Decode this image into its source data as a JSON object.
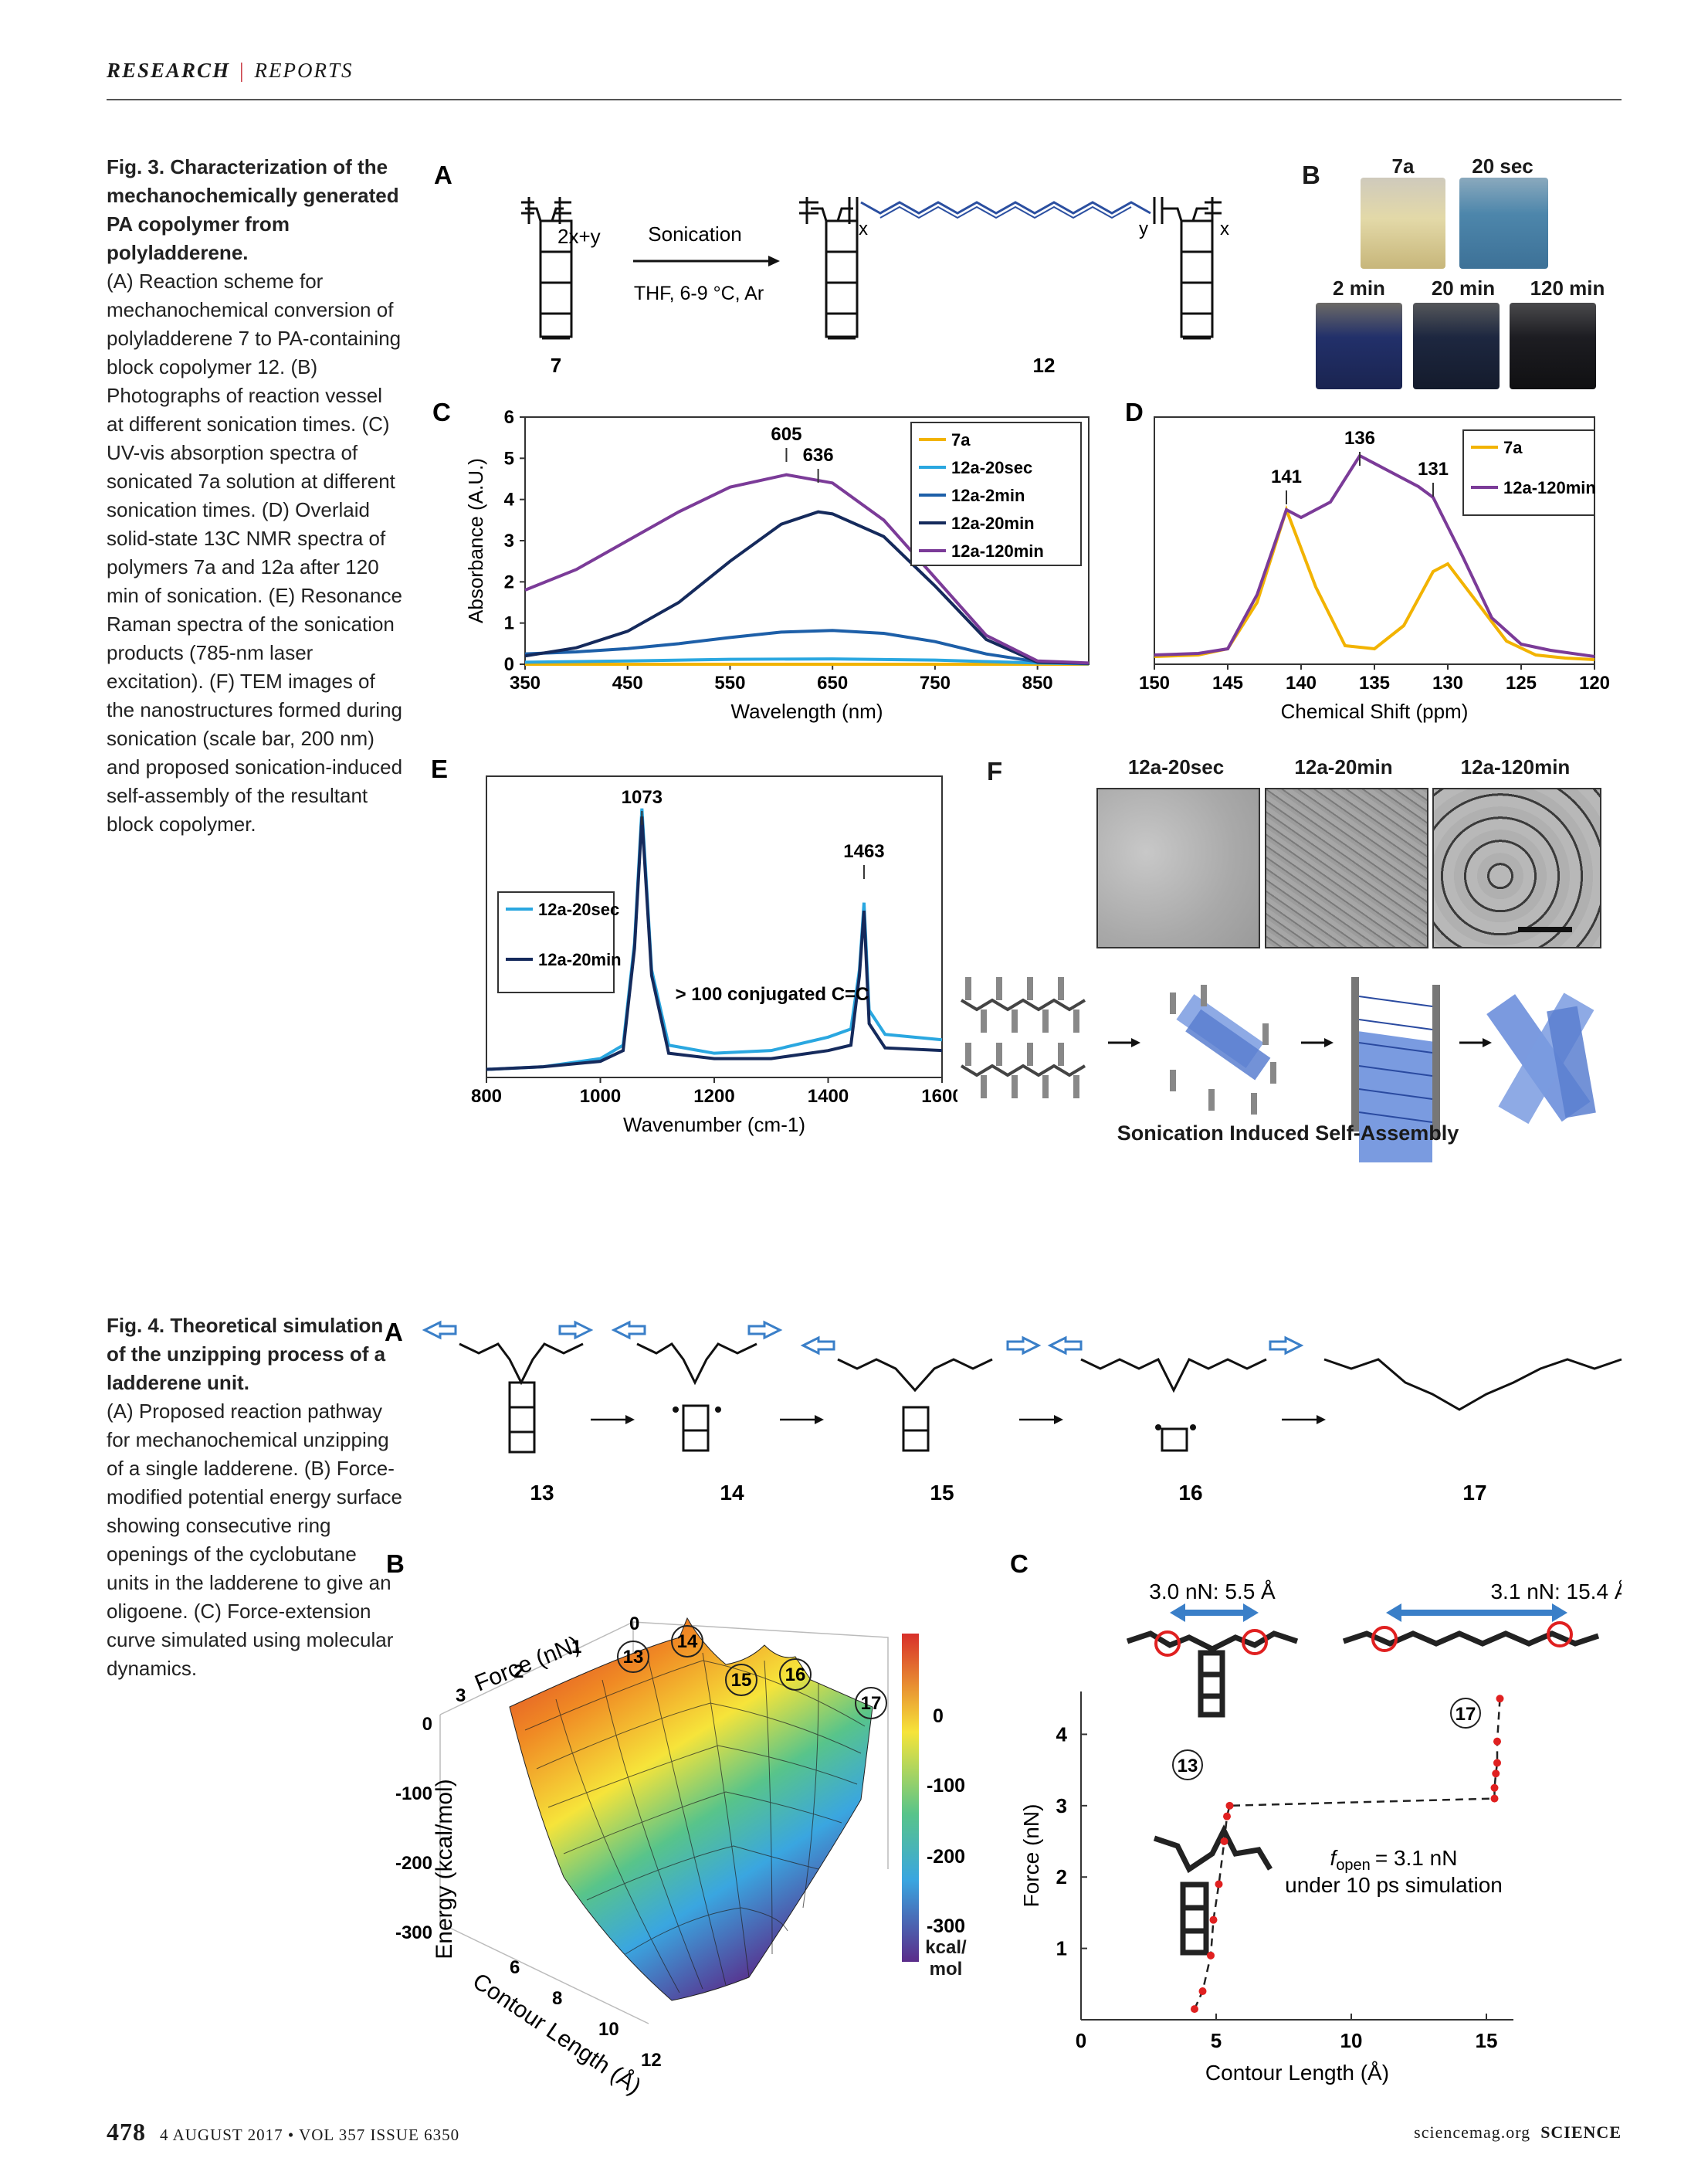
{
  "header": {
    "section": "RESEARCH",
    "subsection": "REPORTS"
  },
  "fig3": {
    "title": "Fig. 3. Characterization of the mechanochemically generated PA copolymer from polyladderene.",
    "body": "(A) Reaction scheme for mechanochemical conversion of polyladderene 7 to PA-containing block copolymer 12. (B) Photographs of reaction vessel at different sonication times. (C) UV-vis absorption spectra of sonicated 7a solution at different sonication times. (D) Overlaid solid-state 13C NMR spectra of polymers 7a and 12a after 120 min of sonication. (E) Resonance Raman spectra of the sonication products (785-nm laser excitation). (F) TEM images of the nanostructures formed during sonication (scale bar, 200 nm) and proposed sonication-induced self-assembly of the resultant block copolymer.",
    "panelA": {
      "label": "A",
      "sub1": "2x+y",
      "arrow_top": "Sonication",
      "arrow_bottom": "THF, 6-9 °C, Ar",
      "cmpd_left": "7",
      "cmpd_right": "12",
      "sub_x": "x",
      "sub_y": "y"
    },
    "panelB": {
      "label": "B",
      "photos": [
        "7a",
        "20 sec",
        "2 min",
        "20 min",
        "120 min"
      ],
      "colors": [
        "#d8cfa0",
        "#4f86a8",
        "#1f2a4a",
        "#1a2438",
        "#1a1a1e"
      ]
    },
    "panelF": {
      "label": "F",
      "tem": [
        "12a-20sec",
        "12a-20min",
        "12a-120min"
      ],
      "caption": "Sonication Induced Self-Assembly"
    },
    "panelE_annot": "> 100 conjugated C=C"
  },
  "fig4": {
    "title": "Fig. 4. Theoretical simulation of the unzipping process of a ladderene unit.",
    "body": "(A) Proposed reaction pathway for mechanochemical unzipping of a single ladderene. (B) Force-modified potential energy surface showing consecutive ring openings of the cyclobutane units in the ladderene to give an oligoene. (C) Force-extension curve simulated using molecular dynamics.",
    "panelA": {
      "label": "A",
      "compounds": [
        "13",
        "14",
        "15",
        "16",
        "17"
      ]
    },
    "panelB": {
      "label": "B",
      "z_label": "Energy (kcal/mol)",
      "x_label": "Contour Length (Å)",
      "y_label": "Force (nN)",
      "z_ticks": [
        "0",
        "-100",
        "-200",
        "-300"
      ],
      "x_ticks": [
        "6",
        "8",
        "10",
        "12"
      ],
      "y_ticks": [
        "0",
        "1",
        "2",
        "3"
      ],
      "cbar_ticks": [
        "0",
        "-100",
        "-200",
        "-300"
      ],
      "cbar_unit": "kcal/ mol",
      "markers": [
        "13",
        "14",
        "15",
        "16",
        "17"
      ]
    },
    "panelC_extra": {
      "label": "C",
      "ann1": "3.0 nN: 5.5 Å",
      "ann2": "3.1 nN: 15.4 Å",
      "f_open": "= 3.1 nN",
      "f_open_sym": "f",
      "f_open_sub": "open",
      "f_note": "under 10 ps simulation",
      "m13": "13",
      "m17": "17"
    }
  },
  "chart_data": [
    {
      "panel": "C",
      "type": "line",
      "xlabel": "Wavelength (nm)",
      "ylabel": "Absorbance (A.U.)",
      "xlim": [
        350,
        900
      ],
      "ylim": [
        0,
        6
      ],
      "xticks": [
        350,
        450,
        550,
        650,
        750,
        850
      ],
      "yticks": [
        0,
        1,
        2,
        3,
        4,
        5,
        6
      ],
      "annotations": [
        {
          "text": "605",
          "x": 605
        },
        {
          "text": "636",
          "x": 636
        }
      ],
      "legend": "top-right",
      "series": [
        {
          "name": "7a",
          "color": "#f2b300",
          "x": [
            350,
            450,
            550,
            650,
            750,
            850,
            900
          ],
          "y": [
            0,
            0,
            0,
            0,
            0,
            0,
            0
          ]
        },
        {
          "name": "12a-20sec",
          "color": "#2aa7e0",
          "x": [
            350,
            450,
            550,
            650,
            750,
            850,
            900
          ],
          "y": [
            0.05,
            0.08,
            0.12,
            0.13,
            0.1,
            0.03,
            0.01
          ]
        },
        {
          "name": "12a-2min",
          "color": "#1d5fa8",
          "x": [
            350,
            400,
            450,
            500,
            550,
            600,
            650,
            700,
            750,
            800,
            850,
            900
          ],
          "y": [
            0.25,
            0.3,
            0.38,
            0.5,
            0.65,
            0.78,
            0.82,
            0.75,
            0.55,
            0.25,
            0.06,
            0.02
          ]
        },
        {
          "name": "12a-20min",
          "color": "#152a5c",
          "x": [
            350,
            400,
            450,
            500,
            550,
            600,
            636,
            650,
            700,
            750,
            800,
            850,
            900
          ],
          "y": [
            0.2,
            0.4,
            0.8,
            1.5,
            2.5,
            3.4,
            3.7,
            3.65,
            3.1,
            1.9,
            0.6,
            0.05,
            0.02
          ]
        },
        {
          "name": "12a-120min",
          "color": "#7b3b98",
          "x": [
            350,
            400,
            450,
            500,
            550,
            605,
            650,
            700,
            750,
            800,
            850,
            900
          ],
          "y": [
            1.8,
            2.3,
            3.0,
            3.7,
            4.3,
            4.6,
            4.4,
            3.5,
            2.1,
            0.7,
            0.08,
            0.03
          ]
        }
      ]
    },
    {
      "panel": "D",
      "type": "line",
      "xlabel": "Chemical Shift (ppm)",
      "ylabel": "",
      "xlim": [
        150,
        120
      ],
      "xticks": [
        150,
        145,
        140,
        135,
        130,
        125,
        120
      ],
      "annotations": [
        {
          "text": "141",
          "x": 141
        },
        {
          "text": "136",
          "x": 136
        },
        {
          "text": "131",
          "x": 131
        }
      ],
      "legend": "top-right",
      "series": [
        {
          "name": "7a",
          "color": "#f2b300",
          "x": [
            150,
            147,
            145,
            143,
            141,
            139,
            137,
            135,
            133,
            131,
            130,
            128,
            126,
            124,
            122,
            120
          ],
          "y": [
            0.05,
            0.06,
            0.1,
            0.4,
            1.0,
            0.5,
            0.12,
            0.1,
            0.25,
            0.6,
            0.65,
            0.4,
            0.15,
            0.06,
            0.04,
            0.03
          ]
        },
        {
          "name": "12a-120min",
          "color": "#7b3b98",
          "x": [
            150,
            147,
            145,
            143,
            141,
            140,
            138,
            136,
            134,
            132,
            131,
            129,
            127,
            125,
            123,
            120
          ],
          "y": [
            0.06,
            0.07,
            0.1,
            0.45,
            1.0,
            0.95,
            1.05,
            1.35,
            1.25,
            1.15,
            1.08,
            0.7,
            0.3,
            0.13,
            0.09,
            0.05
          ]
        }
      ]
    },
    {
      "panel": "E",
      "type": "line",
      "xlabel": "Wavenumber (cm-1)",
      "ylabel": "",
      "xlim": [
        800,
        1600
      ],
      "xticks": [
        800,
        1000,
        1200,
        1400,
        1600
      ],
      "annotations": [
        {
          "text": "1073",
          "x": 1073
        },
        {
          "text": "1463",
          "x": 1463
        }
      ],
      "legend": "left",
      "series": [
        {
          "name": "12a-20sec",
          "color": "#2aa7e0",
          "x": [
            800,
            900,
            1000,
            1040,
            1060,
            1073,
            1090,
            1120,
            1200,
            1300,
            1400,
            1440,
            1455,
            1463,
            1472,
            1500,
            1600
          ],
          "y": [
            0.03,
            0.04,
            0.07,
            0.12,
            0.5,
            1.0,
            0.4,
            0.12,
            0.09,
            0.1,
            0.15,
            0.18,
            0.4,
            0.65,
            0.25,
            0.16,
            0.14
          ]
        },
        {
          "name": "12a-20min",
          "color": "#152a5c",
          "x": [
            800,
            900,
            1000,
            1040,
            1060,
            1073,
            1090,
            1120,
            1200,
            1300,
            1400,
            1440,
            1455,
            1463,
            1472,
            1500,
            1600
          ],
          "y": [
            0.03,
            0.04,
            0.06,
            0.1,
            0.48,
            0.97,
            0.38,
            0.09,
            0.07,
            0.07,
            0.1,
            0.12,
            0.38,
            0.62,
            0.2,
            0.11,
            0.1
          ]
        }
      ]
    },
    {
      "panel": "4C",
      "type": "scatter",
      "xlabel": "Contour Length (Å)",
      "ylabel": "Force (nN)",
      "xlim": [
        0,
        16
      ],
      "ylim": [
        0,
        4.6
      ],
      "xticks": [
        0,
        5,
        10,
        15
      ],
      "yticks": [
        1,
        2,
        3,
        4
      ],
      "series": [
        {
          "name": "",
          "color": "#e02020",
          "x": [
            4.2,
            4.5,
            4.8,
            4.9,
            5.1,
            5.3,
            5.4,
            5.5,
            15.3,
            15.3,
            15.35,
            15.4,
            15.4,
            15.5
          ],
          "y": [
            0.15,
            0.4,
            0.9,
            1.4,
            1.9,
            2.5,
            2.85,
            3.0,
            3.1,
            3.25,
            3.45,
            3.6,
            3.9,
            4.5
          ]
        }
      ]
    }
  ],
  "footer": {
    "page": "478",
    "issue": "4 AUGUST 2017 • VOL 357 ISSUE 6350",
    "site": "sciencemag.org",
    "journal": "SCIENCE"
  }
}
